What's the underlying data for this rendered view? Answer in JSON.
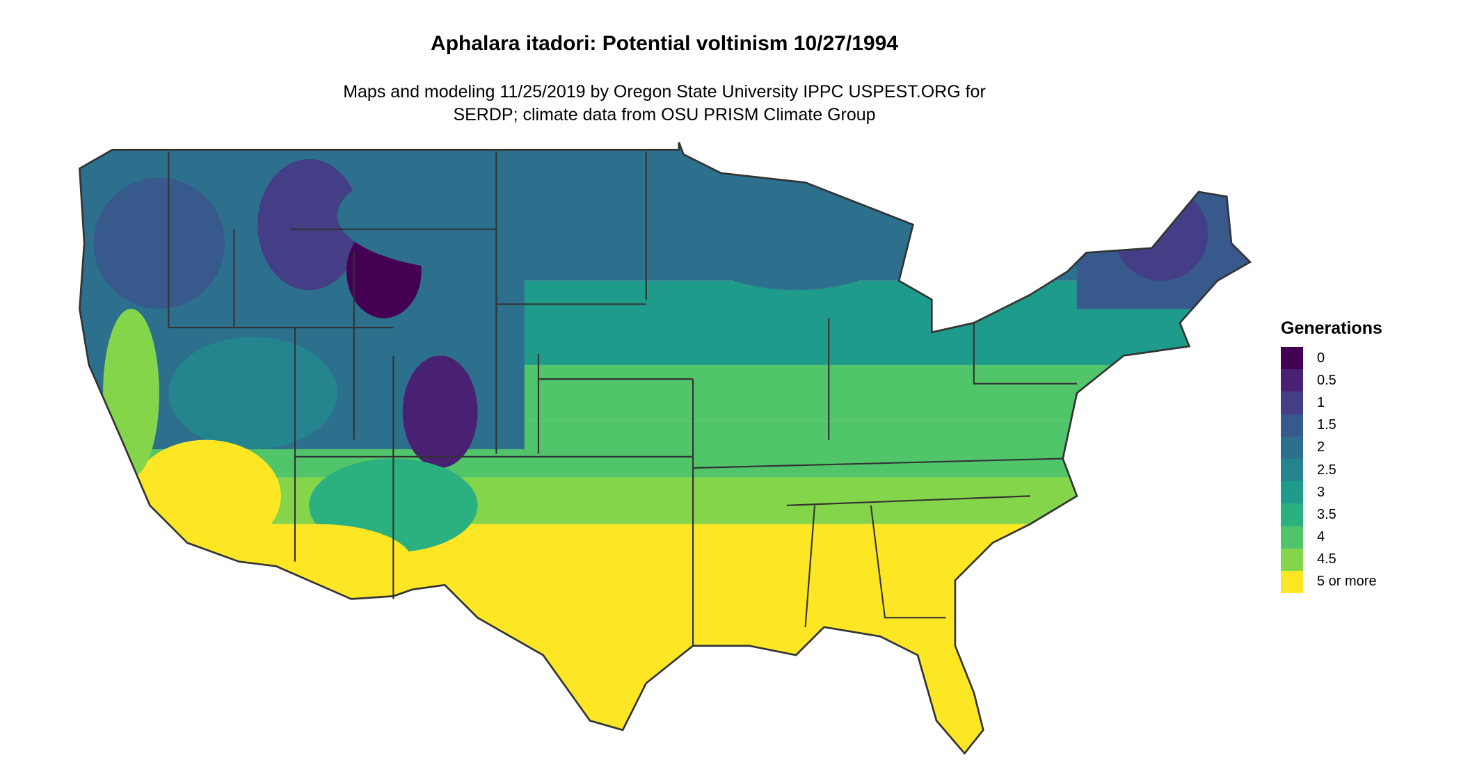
{
  "title": "Aphalara itadori: Potential voltinism 10/27/1994",
  "subtitle_lines": [
    "Maps and modeling 11/25/2019 by Oregon State University IPPC USPEST.ORG for",
    "SERDP; climate data from OSU PRISM Climate Group"
  ],
  "chart_data": {
    "type": "heatmap",
    "region": "contiguous United States",
    "legend": {
      "title": "Generations",
      "placement": "right",
      "entries": [
        {
          "label": "0",
          "color": "#440154"
        },
        {
          "label": "0.5",
          "color": "#482173"
        },
        {
          "label": "1",
          "color": "#433E85"
        },
        {
          "label": "1.5",
          "color": "#38598C"
        },
        {
          "label": "2",
          "color": "#2D708E"
        },
        {
          "label": "2.5",
          "color": "#25858E"
        },
        {
          "label": "3",
          "color": "#1E9B8A"
        },
        {
          "label": "3.5",
          "color": "#2BB07F"
        },
        {
          "label": "4",
          "color": "#51C56A"
        },
        {
          "label": "4.5",
          "color": "#85D54A"
        },
        {
          "label": "5 or more",
          "color": "#FDE725"
        }
      ]
    }
  }
}
